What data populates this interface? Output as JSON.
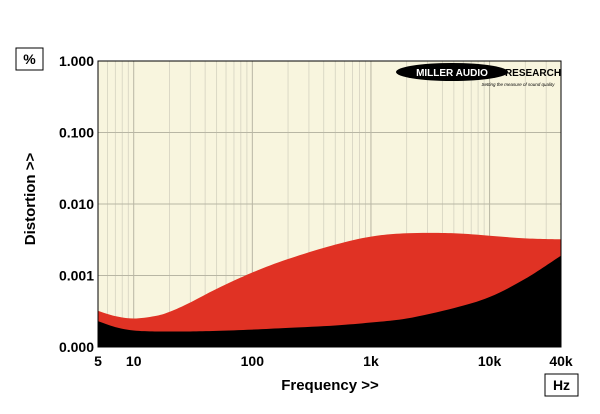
{
  "chart_data": {
    "type": "area",
    "xlabel": "Frequency >>",
    "ylabel": "Distortion >>",
    "x_unit": "Hz",
    "y_unit": "%",
    "x_scale": "log",
    "y_scale": "log",
    "xlim": [
      5,
      40000
    ],
    "ylim": [
      0.0001,
      1.0
    ],
    "x_ticks": [
      {
        "value": 5,
        "label": "5"
      },
      {
        "value": 10,
        "label": "10"
      },
      {
        "value": 100,
        "label": "100"
      },
      {
        "value": 1000,
        "label": "1k"
      },
      {
        "value": 10000,
        "label": "10k"
      },
      {
        "value": 40000,
        "label": "40k"
      }
    ],
    "y_ticks": [
      {
        "value": 0.0001,
        "label": "0.000"
      },
      {
        "value": 0.001,
        "label": "0.001"
      },
      {
        "value": 0.01,
        "label": "0.010"
      },
      {
        "value": 0.1,
        "label": "0.100"
      },
      {
        "value": 1.0,
        "label": "1.000"
      }
    ],
    "grid": true,
    "background_color": "#f8f5de",
    "series": [
      {
        "color": "#e03224",
        "x": [
          5,
          7,
          10,
          15,
          20,
          30,
          50,
          100,
          200,
          500,
          1000,
          2000,
          5000,
          10000,
          20000,
          40000
        ],
        "y": [
          0.00032,
          0.00027,
          0.00025,
          0.00027,
          0.00031,
          0.00042,
          0.00065,
          0.0011,
          0.0017,
          0.0027,
          0.0035,
          0.0039,
          0.0039,
          0.0036,
          0.0033,
          0.0032
        ]
      },
      {
        "color": "#000000",
        "x": [
          5,
          7,
          10,
          15,
          20,
          30,
          50,
          100,
          200,
          500,
          1000,
          2000,
          5000,
          10000,
          20000,
          40000
        ],
        "y": [
          0.00023,
          0.00019,
          0.00017,
          0.000165,
          0.000165,
          0.000165,
          0.000168,
          0.000175,
          0.000185,
          0.0002,
          0.00022,
          0.00025,
          0.00035,
          0.0005,
          0.0009,
          0.0019
        ]
      }
    ]
  },
  "logo": {
    "name": "MILLER AUDIO RESEARCH",
    "tagline": "Setting the measure of sound quality"
  }
}
